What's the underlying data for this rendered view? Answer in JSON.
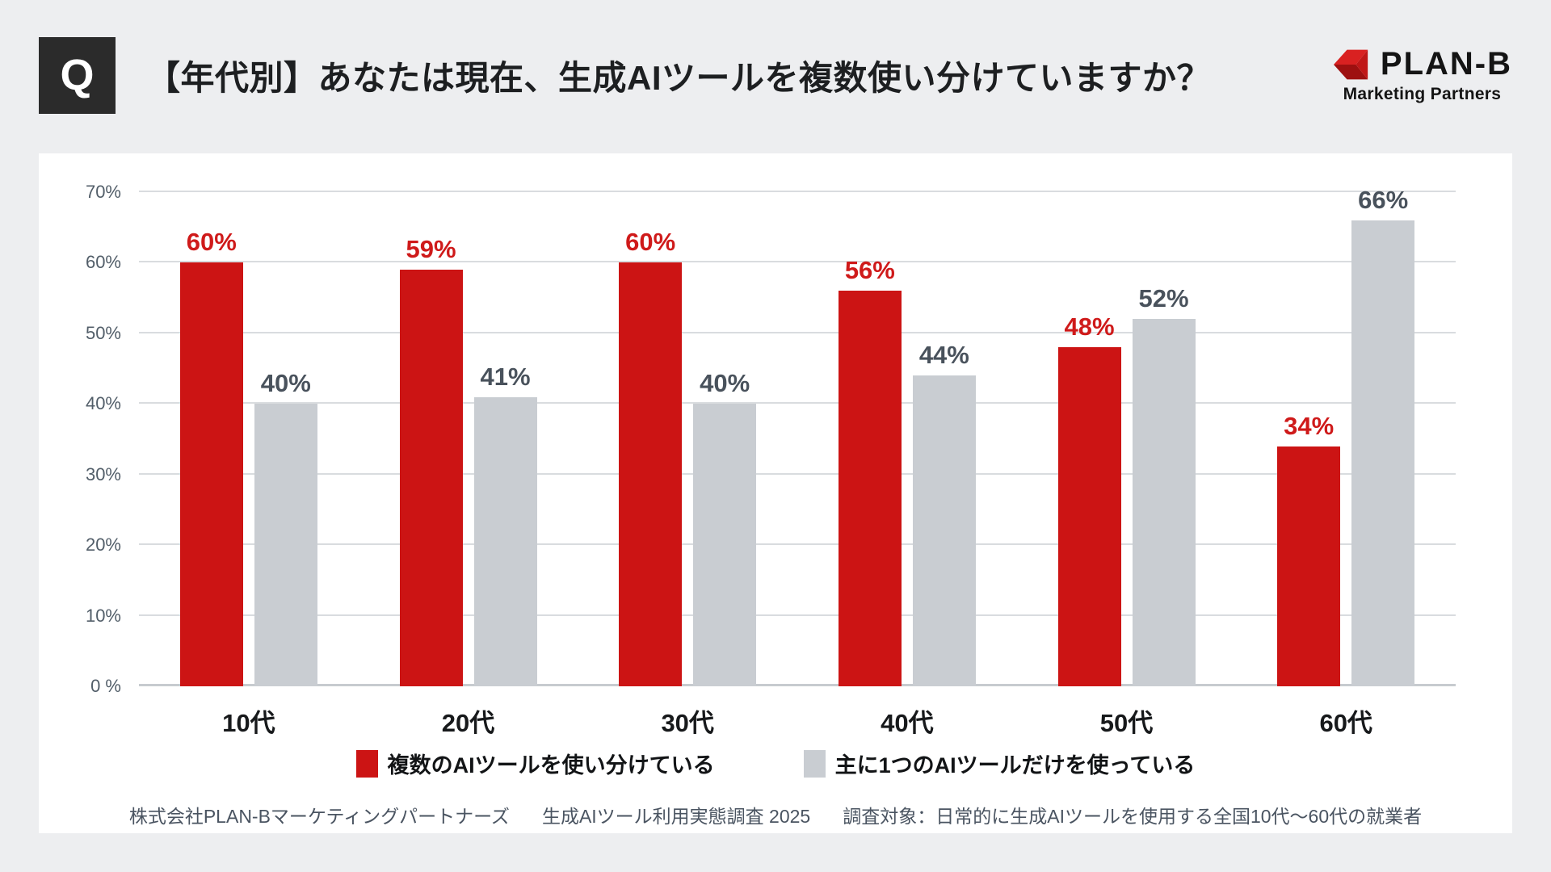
{
  "header": {
    "q_badge": "Q",
    "title": "【年代別】あなたは現在、生成AIツールを複数使い分けていますか？",
    "logo": {
      "brand": "PLAN-B",
      "subtitle": "Marketing Partners"
    }
  },
  "chart_data": {
    "type": "bar",
    "title": "【年代別】あなたは現在、生成AIツールを複数使い分けていますか？",
    "categories": [
      "10代",
      "20代",
      "30代",
      "40代",
      "50代",
      "60代"
    ],
    "series": [
      {
        "name": "複数のAIツールを使い分けている",
        "color": "#CC1414",
        "label_color": "#CF1A1A",
        "values": [
          60,
          59,
          60,
          56,
          48,
          34
        ]
      },
      {
        "name": "主に1つのAIツールだけを使っている",
        "color": "#C9CDD2",
        "label_color": "#49525C",
        "values": [
          40,
          41,
          40,
          44,
          52,
          66
        ]
      }
    ],
    "xlabel": "",
    "ylabel": "",
    "ylim": [
      0,
      70
    ],
    "ytick_step": 10,
    "ytick_labels": [
      "0 %",
      "10%",
      "20%",
      "30%",
      "40%",
      "50%",
      "60%",
      "70%"
    ],
    "grid": true,
    "legend_position": "bottom",
    "value_suffix": "%"
  },
  "footer": {
    "segments": [
      "株式会社PLAN-Bマーケティングパートナーズ",
      "生成AIツール利用実態調査 2025",
      "調査対象：日常的に生成AIツールを使用する全国10代～60代の就業者"
    ]
  },
  "colors": {
    "background": "#EDEEF0",
    "card": "#FFFFFF",
    "accent_red": "#CC1414",
    "bar_gray": "#C9CDD2",
    "badge_dark": "#2B2B2B",
    "text_dark": "#1D1F21",
    "text_slate": "#4A5461",
    "gridline": "#D9DCDF"
  }
}
